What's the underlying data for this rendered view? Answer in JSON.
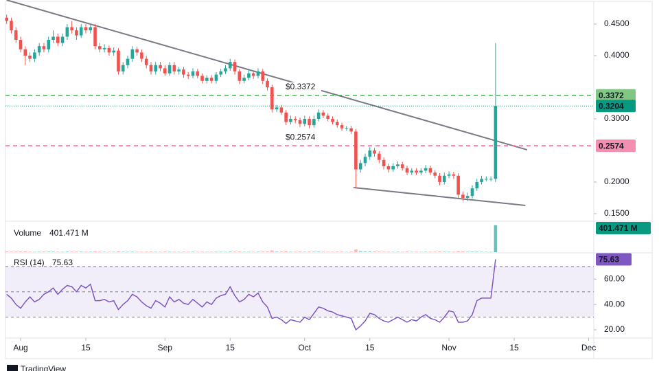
{
  "chart_data": [
    {
      "type": "candlestick",
      "up_color": "#26a69a",
      "down_color": "#ef5350",
      "xlim": [
        -0.25,
        126.1
      ],
      "xticks": [
        {
          "value": 3,
          "label": "Aug"
        },
        {
          "value": 17,
          "label": "15"
        },
        {
          "value": 34,
          "label": "Sep"
        },
        {
          "value": 48,
          "label": "15"
        },
        {
          "value": 64,
          "label": "Oct"
        },
        {
          "value": 78,
          "label": "15"
        },
        {
          "value": 95,
          "label": "Nov"
        },
        {
          "value": 109,
          "label": "15"
        },
        {
          "value": 125,
          "label": "Dec"
        }
      ],
      "ylim": [
        0.138,
        0.4826
      ],
      "yticks": [
        {
          "value": 0.15,
          "label": "0.1500"
        },
        {
          "value": 0.2,
          "label": "0.2000"
        },
        {
          "value": 0.3,
          "label": "0.3000"
        },
        {
          "value": 0.4,
          "label": "0.4000"
        },
        {
          "value": 0.45,
          "label": "0.4500"
        }
      ],
      "open": [
        0.46,
        0.455,
        0.44,
        0.425,
        0.41,
        0.4,
        0.395,
        0.405,
        0.415,
        0.41,
        0.425,
        0.43,
        0.42,
        0.43,
        0.445,
        0.44,
        0.432,
        0.445,
        0.44,
        0.445,
        0.415,
        0.41,
        0.412,
        0.405,
        0.408,
        0.375,
        0.385,
        0.395,
        0.41,
        0.405,
        0.395,
        0.385,
        0.375,
        0.385,
        0.38,
        0.372,
        0.385,
        0.375,
        0.378,
        0.37,
        0.368,
        0.375,
        0.368,
        0.36,
        0.365,
        0.36,
        0.37,
        0.375,
        0.38,
        0.39,
        0.375,
        0.36,
        0.365,
        0.372,
        0.368,
        0.375,
        0.36,
        0.35,
        0.315,
        0.318,
        0.31,
        0.295,
        0.3,
        0.298,
        0.292,
        0.3,
        0.29,
        0.3,
        0.31,
        0.305,
        0.3,
        0.295,
        0.29,
        0.285,
        0.285,
        0.28,
        0.22,
        0.23,
        0.24,
        0.25,
        0.245,
        0.235,
        0.225,
        0.22,
        0.225,
        0.228,
        0.222,
        0.215,
        0.218,
        0.215,
        0.218,
        0.222,
        0.215,
        0.21,
        0.2,
        0.21,
        0.212,
        0.21,
        0.18,
        0.175,
        0.178,
        0.19,
        0.2,
        0.205,
        0.205,
        0.205
      ],
      "high": [
        0.465,
        0.46,
        0.445,
        0.43,
        0.415,
        0.405,
        0.41,
        0.42,
        0.42,
        0.43,
        0.44,
        0.435,
        0.435,
        0.45,
        0.455,
        0.445,
        0.45,
        0.45,
        0.45,
        0.45,
        0.42,
        0.418,
        0.416,
        0.413,
        0.412,
        0.39,
        0.4,
        0.415,
        0.414,
        0.41,
        0.4,
        0.39,
        0.39,
        0.39,
        0.385,
        0.39,
        0.39,
        0.382,
        0.382,
        0.374,
        0.38,
        0.379,
        0.372,
        0.369,
        0.369,
        0.374,
        0.379,
        0.385,
        0.395,
        0.394,
        0.379,
        0.37,
        0.377,
        0.376,
        0.38,
        0.379,
        0.364,
        0.354,
        0.322,
        0.322,
        0.314,
        0.305,
        0.304,
        0.302,
        0.305,
        0.304,
        0.305,
        0.315,
        0.314,
        0.309,
        0.304,
        0.299,
        0.294,
        0.289,
        0.289,
        0.284,
        0.235,
        0.245,
        0.255,
        0.254,
        0.249,
        0.239,
        0.229,
        0.23,
        0.233,
        0.232,
        0.226,
        0.222,
        0.222,
        0.222,
        0.227,
        0.226,
        0.219,
        0.214,
        0.215,
        0.217,
        0.216,
        0.214,
        0.185,
        0.183,
        0.195,
        0.205,
        0.21,
        0.209,
        0.209,
        0.42
      ],
      "low": [
        0.45,
        0.435,
        0.42,
        0.405,
        0.385,
        0.39,
        0.39,
        0.4,
        0.405,
        0.405,
        0.42,
        0.415,
        0.415,
        0.425,
        0.435,
        0.425,
        0.428,
        0.435,
        0.435,
        0.41,
        0.405,
        0.405,
        0.4,
        0.4,
        0.37,
        0.37,
        0.38,
        0.39,
        0.4,
        0.39,
        0.38,
        0.37,
        0.37,
        0.375,
        0.368,
        0.368,
        0.37,
        0.37,
        0.365,
        0.363,
        0.364,
        0.364,
        0.356,
        0.356,
        0.356,
        0.356,
        0.366,
        0.371,
        0.376,
        0.37,
        0.355,
        0.356,
        0.361,
        0.363,
        0.364,
        0.355,
        0.345,
        0.31,
        0.311,
        0.306,
        0.29,
        0.291,
        0.293,
        0.287,
        0.288,
        0.285,
        0.286,
        0.296,
        0.301,
        0.296,
        0.291,
        0.286,
        0.281,
        0.281,
        0.276,
        0.19,
        0.215,
        0.225,
        0.235,
        0.24,
        0.23,
        0.22,
        0.215,
        0.216,
        0.221,
        0.218,
        0.211,
        0.211,
        0.211,
        0.211,
        0.214,
        0.211,
        0.206,
        0.195,
        0.196,
        0.206,
        0.205,
        0.175,
        0.17,
        0.17,
        0.174,
        0.186,
        0.196,
        0.201,
        0.201,
        0.2
      ],
      "close": [
        0.455,
        0.44,
        0.425,
        0.41,
        0.4,
        0.395,
        0.405,
        0.415,
        0.41,
        0.425,
        0.43,
        0.42,
        0.43,
        0.445,
        0.44,
        0.432,
        0.445,
        0.44,
        0.445,
        0.415,
        0.41,
        0.412,
        0.405,
        0.408,
        0.375,
        0.385,
        0.395,
        0.41,
        0.405,
        0.395,
        0.385,
        0.375,
        0.385,
        0.38,
        0.372,
        0.385,
        0.375,
        0.378,
        0.37,
        0.368,
        0.375,
        0.368,
        0.36,
        0.365,
        0.36,
        0.37,
        0.375,
        0.38,
        0.39,
        0.375,
        0.36,
        0.365,
        0.372,
        0.368,
        0.375,
        0.36,
        0.35,
        0.315,
        0.318,
        0.31,
        0.295,
        0.3,
        0.298,
        0.292,
        0.3,
        0.29,
        0.3,
        0.31,
        0.305,
        0.3,
        0.295,
        0.29,
        0.285,
        0.285,
        0.28,
        0.22,
        0.23,
        0.24,
        0.25,
        0.245,
        0.235,
        0.225,
        0.22,
        0.225,
        0.228,
        0.222,
        0.215,
        0.218,
        0.215,
        0.218,
        0.222,
        0.215,
        0.21,
        0.2,
        0.21,
        0.212,
        0.21,
        0.18,
        0.175,
        0.178,
        0.19,
        0.2,
        0.205,
        0.205,
        0.205,
        0.3204
      ],
      "price_lines": [
        {
          "value": 0.3372,
          "label": "$0.3372",
          "color": "#4caf50",
          "tag_color": "#81c784"
        },
        {
          "value": 0.2574,
          "label": "$0.2574",
          "color": "#f06292",
          "tag_color": "#f48fb1"
        }
      ],
      "last_price_color": "#089981",
      "trendlines": [
        {
          "x": [
            0,
            111.8
          ],
          "y": [
            0.488,
            0.251
          ]
        },
        {
          "x": [
            74.5,
            111.4
          ],
          "y": [
            0.1913,
            0.163
          ]
        }
      ],
      "footer": "TradingView"
    },
    {
      "type": "bar",
      "title": "Volume",
      "readout": "401.471 M",
      "ylim": [
        0,
        420
      ],
      "values": [
        12,
        9,
        8,
        10,
        14,
        7,
        6,
        8,
        9,
        11,
        10,
        7,
        8,
        12,
        9,
        8,
        10,
        7,
        9,
        13,
        8,
        7,
        6,
        8,
        14,
        9,
        8,
        10,
        7,
        6,
        8,
        9,
        7,
        6,
        8,
        9,
        7,
        6,
        8,
        7,
        9,
        6,
        8,
        7,
        6,
        9,
        8,
        7,
        12,
        9,
        10,
        7,
        8,
        6,
        9,
        10,
        11,
        25,
        12,
        10,
        14,
        8,
        7,
        9,
        8,
        9,
        10,
        12,
        8,
        7,
        6,
        8,
        7,
        6,
        9,
        40,
        20,
        15,
        14,
        10,
        9,
        8,
        7,
        6,
        8,
        7,
        9,
        6,
        7,
        6,
        8,
        7,
        8,
        10,
        9,
        8,
        7,
        15,
        12,
        9,
        11,
        10,
        8,
        7,
        6,
        401.471
      ]
    },
    {
      "type": "line",
      "title": "RSI (14)",
      "color": "#7e57c2",
      "ylim": [
        13.5,
        78.6
      ],
      "yticks": [
        {
          "value": 20,
          "label": "20.00"
        },
        {
          "value": 40,
          "label": "40.00"
        },
        {
          "value": 60,
          "label": "60.00"
        }
      ],
      "bands": [
        30,
        50,
        70
      ],
      "values": [
        48,
        45,
        40,
        37,
        42,
        46,
        42,
        44,
        48,
        50,
        53,
        48,
        52,
        55,
        54,
        50,
        55,
        53,
        56,
        43,
        43,
        44,
        42,
        43,
        36,
        40,
        43,
        48,
        46,
        42,
        39,
        37,
        43,
        41,
        38,
        46,
        42,
        44,
        41,
        40,
        44,
        41,
        38,
        42,
        40,
        45,
        47,
        48,
        54,
        47,
        42,
        44,
        48,
        46,
        49,
        42,
        38,
        29,
        30,
        28,
        25,
        28,
        27,
        26,
        30,
        28,
        33,
        38,
        37,
        35,
        34,
        32,
        31,
        30,
        29,
        20,
        23,
        27,
        33,
        32,
        29,
        27,
        26,
        28,
        30,
        28,
        26,
        28,
        27,
        30,
        32,
        29,
        28,
        26,
        30,
        35,
        34,
        26,
        26,
        27,
        32,
        43,
        45,
        45,
        45,
        75.63
      ]
    }
  ]
}
